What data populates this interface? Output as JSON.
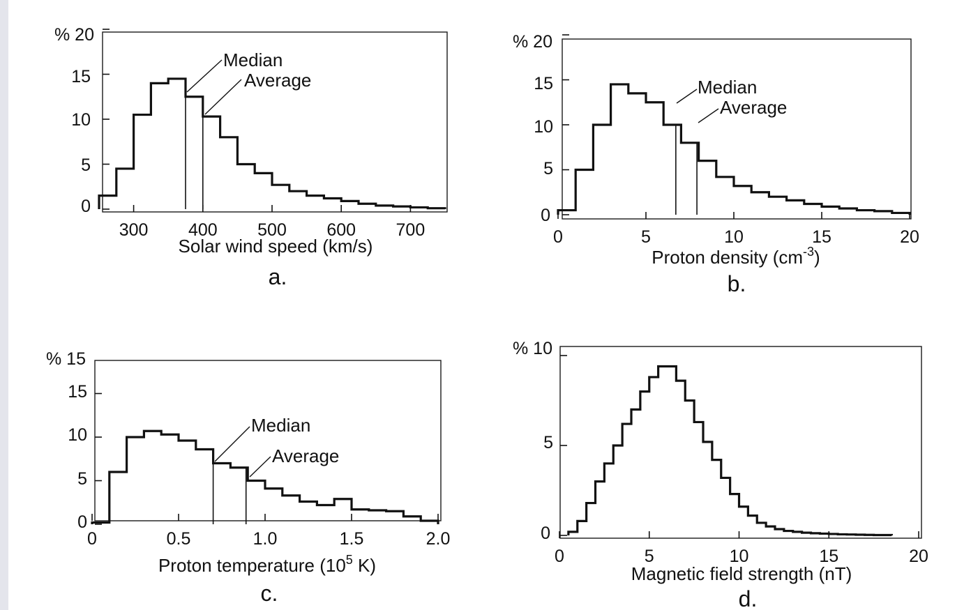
{
  "chart_data": [
    {
      "type": "bar",
      "panel_label": "a.",
      "xlabel": "Solar wind speed (km/s)",
      "ylabel_prefix": "%",
      "x_ticks": [
        300,
        400,
        500,
        600,
        700
      ],
      "y_ticks": [
        0,
        5,
        10,
        15,
        20
      ],
      "xlim": [
        250,
        750
      ],
      "ylim": [
        0,
        20
      ],
      "bin_edges": [
        250,
        275,
        300,
        325,
        350,
        375,
        400,
        425,
        450,
        475,
        500,
        525,
        550,
        575,
        600,
        625,
        650,
        675,
        700,
        725,
        750
      ],
      "values": [
        1.5,
        4.5,
        10.5,
        14,
        14.5,
        12.5,
        10.3,
        8,
        5,
        4,
        2.7,
        2,
        1.5,
        1.2,
        0.9,
        0.6,
        0.4,
        0.3,
        0.2,
        0.1
      ],
      "median": {
        "label": "Median",
        "x": 375
      },
      "average": {
        "label": "Average",
        "x": 400
      }
    },
    {
      "type": "bar",
      "panel_label": "b.",
      "xlabel_main": "Proton density (cm",
      "xlabel_sup": "-3",
      "xlabel_end": ")",
      "ylabel_prefix": "%",
      "x_ticks": [
        0,
        5,
        10,
        15,
        20
      ],
      "y_ticks": [
        0,
        5,
        10,
        15,
        20
      ],
      "xlim": [
        0,
        20
      ],
      "ylim": [
        0,
        20
      ],
      "bin_edges": [
        0,
        1,
        2,
        3,
        4,
        5,
        6,
        7,
        8,
        9,
        10,
        11,
        12,
        13,
        14,
        15,
        16,
        17,
        18,
        19,
        20
      ],
      "values": [
        0.5,
        5,
        10,
        14.5,
        13.5,
        12.5,
        10,
        8,
        6,
        4.2,
        3.2,
        2.5,
        2.0,
        1.6,
        1.2,
        0.9,
        0.7,
        0.5,
        0.4,
        0.2
      ],
      "median": {
        "label": "Median",
        "x": 6.7
      },
      "average": {
        "label": "Average",
        "x": 7.9
      }
    },
    {
      "type": "bar",
      "panel_label": "c.",
      "xlabel_main": "Proton temperature (10",
      "xlabel_sup": "5",
      "xlabel_end": " K)",
      "ylabel_prefix": "%",
      "top_tick_label": "15",
      "x_ticks": [
        0,
        0.5,
        1.0,
        1.5,
        2.0
      ],
      "x_tick_labels": [
        "0",
        "0.5",
        "1.0",
        "1.5",
        "2.0"
      ],
      "y_ticks": [
        0,
        5,
        10,
        15
      ],
      "xlim": [
        0,
        2.0
      ],
      "ylim": [
        0,
        20
      ],
      "bin_edges": [
        0,
        0.1,
        0.2,
        0.3,
        0.4,
        0.5,
        0.6,
        0.7,
        0.8,
        0.9,
        1.0,
        1.1,
        1.2,
        1.3,
        1.4,
        1.5,
        1.6,
        1.7,
        1.8,
        1.9,
        2.0
      ],
      "values": [
        0.2,
        6,
        10,
        10.7,
        10.3,
        9.6,
        8.6,
        7.0,
        6.5,
        5.0,
        4.1,
        3.3,
        2.6,
        2.2,
        2.9,
        1.7,
        1.6,
        1.5,
        0.9,
        0.4
      ],
      "median": {
        "label": "Median",
        "x": 0.7
      },
      "average": {
        "label": "Average",
        "x": 0.89
      }
    },
    {
      "type": "bar",
      "panel_label": "d.",
      "xlabel": "Magnetic field strength (nT)",
      "ylabel_prefix": "%",
      "x_ticks": [
        0,
        5,
        10,
        15,
        20
      ],
      "y_ticks": [
        0,
        5,
        10
      ],
      "xlim": [
        0,
        20
      ],
      "ylim": [
        0,
        10
      ],
      "bin_edges": [
        0.5,
        1.0,
        1.5,
        2.0,
        2.5,
        3.0,
        3.5,
        4.0,
        4.5,
        5.0,
        5.5,
        6.0,
        6.5,
        7.0,
        7.5,
        8.0,
        8.5,
        9.0,
        9.5,
        10.0,
        10.5,
        11.0,
        11.5,
        12.0,
        12.5,
        13.0,
        13.5,
        14.0,
        14.5,
        15.0,
        15.5,
        16.0,
        16.5,
        17.0,
        17.5,
        18.0,
        18.5
      ],
      "values": [
        0.2,
        0.8,
        1.8,
        3.0,
        4.0,
        5.0,
        6.2,
        7.0,
        8.0,
        8.8,
        9.4,
        9.4,
        8.6,
        7.5,
        6.3,
        5.2,
        4.2,
        3.2,
        2.3,
        1.6,
        1.1,
        0.7,
        0.5,
        0.35,
        0.25,
        0.2,
        0.15,
        0.12,
        0.1,
        0.08,
        0.06,
        0.05,
        0.04,
        0.03,
        0.02,
        0.02
      ]
    }
  ]
}
